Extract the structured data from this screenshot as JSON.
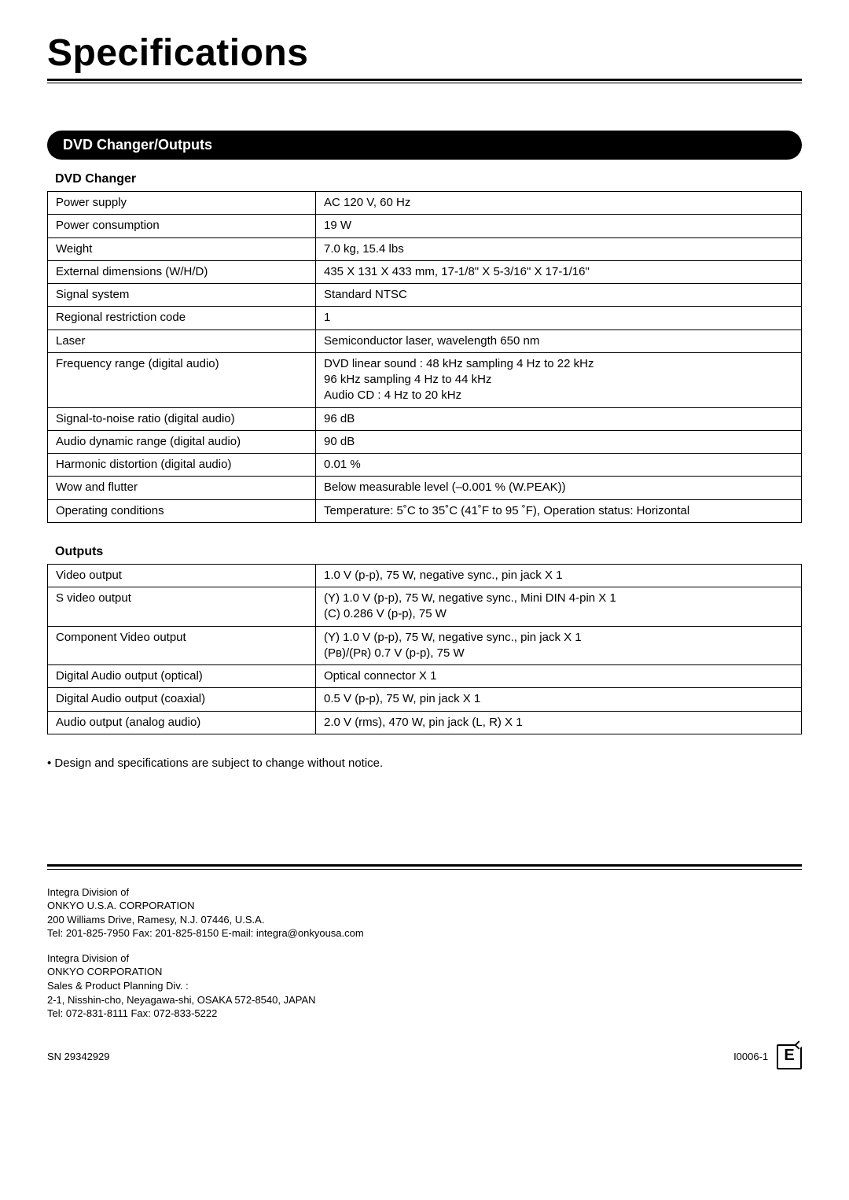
{
  "title": "Specifications",
  "section_pill": "DVD Changer/Outputs",
  "dvd_header": "DVD Changer",
  "outputs_header": "Outputs",
  "dvd_rows": [
    {
      "label": "Power supply",
      "value": "AC 120 V, 60 Hz"
    },
    {
      "label": "Power consumption",
      "value": "19 W"
    },
    {
      "label": "Weight",
      "value": "7.0 kg, 15.4 lbs"
    },
    {
      "label": "External dimensions (W/H/D)",
      "value": "435 X 131 X 433 mm, 17-1/8\" X 5-3/16\" X 17-1/16\""
    },
    {
      "label": "Signal system",
      "value": "Standard NTSC"
    },
    {
      "label": "Regional restriction code",
      "value": "1"
    },
    {
      "label": "Laser",
      "value": "Semiconductor laser, wavelength 650 nm"
    },
    {
      "label": "Frequency range (digital audio)",
      "value": "DVD linear sound :  48 kHz sampling 4 Hz to 22 kHz\n                               96 kHz sampling 4 Hz to 44 kHz\nAudio CD :              4 Hz to 20 kHz"
    },
    {
      "label": "Signal-to-noise ratio (digital audio)",
      "value": "96 dB"
    },
    {
      "label": "Audio dynamic range (digital audio)",
      "value": "90 dB"
    },
    {
      "label": "Harmonic distortion (digital audio)",
      "value": "0.01 %"
    },
    {
      "label": "Wow and flutter",
      "value": "Below measurable level (–0.001 % (W.PEAK))"
    },
    {
      "label": "Operating conditions",
      "value": "Temperature: 5˚C to 35˚C (41˚F to 95 ˚F), Operation status: Horizontal"
    }
  ],
  "output_rows": [
    {
      "label": "Video output",
      "value": "1.0 V (p-p), 75 W, negative sync., pin jack X 1"
    },
    {
      "label": "S video output",
      "value": "(Y) 1.0 V (p-p), 75 W, negative sync., Mini DIN 4-pin X 1\n(C) 0.286 V (p-p), 75 W"
    },
    {
      "label": "Component Video output",
      "value": "(Y) 1.0 V (p-p), 75 W, negative sync., pin jack X 1\n(Pʙ)/(Pʀ) 0.7 V (p-p), 75 W"
    },
    {
      "label": "Digital Audio output (optical)",
      "value": "Optical connector X 1"
    },
    {
      "label": "Digital Audio output (coaxial)",
      "value": "0.5 V (p-p), 75 W, pin jack X 1"
    },
    {
      "label": "Audio output (analog audio)",
      "value": "2.0 V (rms), 470 W, pin jack (L, R) X 1"
    }
  ],
  "note": "• Design and specifications are subject to change without notice.",
  "footer1": {
    "line1": "Integra Division of",
    "corp": "ONKYO U.S.A. CORPORATION",
    "addr": "200 Williams Drive, Ramesy, N.J. 07446, U.S.A.",
    "tel": "Tel: 201-825-7950  Fax: 201-825-8150  E-mail: integra@onkyousa.com"
  },
  "footer2": {
    "line1": "Integra Division of",
    "corp": "ONKYO CORPORATION",
    "div": "Sales & Product Planning Div. :",
    "addr": "2-1, Nisshin-cho, Neyagawa-shi, OSAKA 572-8540, JAPAN",
    "tel": "Tel: 072-831-8111  Fax: 072-833-5222"
  },
  "sn": "SN 29342929",
  "code": "I0006-1",
  "badge": "E"
}
